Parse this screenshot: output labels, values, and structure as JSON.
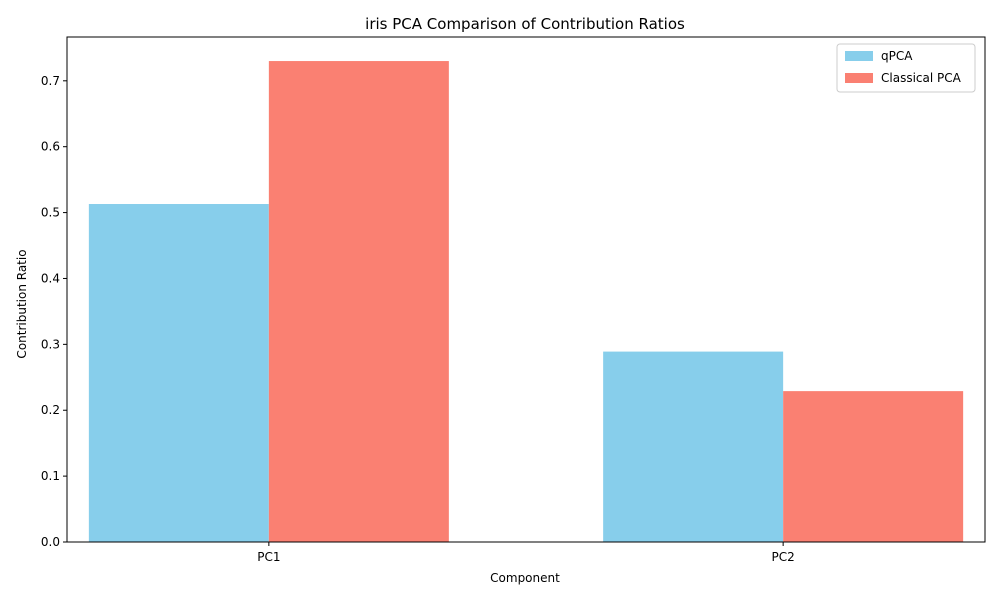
{
  "chart_data": {
    "type": "bar",
    "title": "iris PCA Comparison of Contribution Ratios",
    "xlabel": "Component",
    "ylabel": "Contribution Ratio",
    "categories": [
      "PC1",
      "PC2"
    ],
    "series": [
      {
        "name": "qPCA",
        "values": [
          0.513,
          0.289
        ],
        "color": "#87ceeb"
      },
      {
        "name": "Classical PCA",
        "values": [
          0.73,
          0.229
        ],
        "color": "#fa8072"
      }
    ],
    "ylim": [
      0,
      0.7665
    ],
    "yticks": [
      0.0,
      0.1,
      0.2,
      0.3,
      0.4,
      0.5,
      0.6,
      0.7
    ],
    "ytick_labels": [
      "0.0",
      "0.1",
      "0.2",
      "0.3",
      "0.4",
      "0.5",
      "0.6",
      "0.7"
    ],
    "grid": false,
    "legend_position": "top-right"
  }
}
